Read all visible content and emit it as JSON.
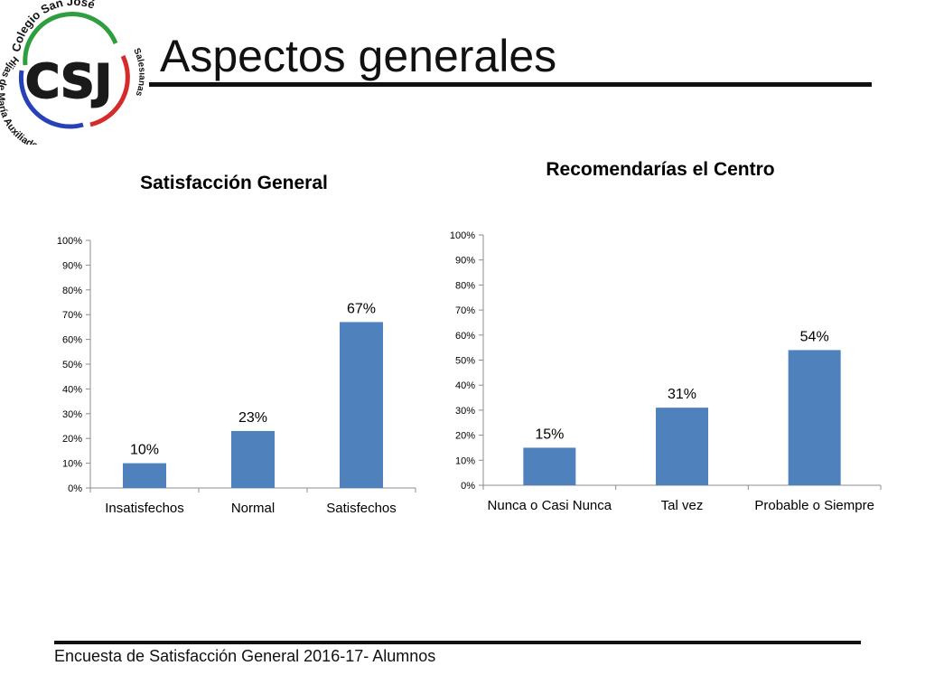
{
  "slide": {
    "title": "Aspectos generales",
    "footer": "Encuesta  de Satisfacción General 2016-17- Alumnos"
  },
  "logo": {
    "monogram": "CSJ",
    "ring_top": "Colegio San José",
    "ring_left": "Hijas de María Auxiliadora",
    "ring_right": "Salesianas",
    "colors": {
      "monogram": "#1a1a1a",
      "arc_green": "#2e9e3e",
      "arc_red": "#d62b2b",
      "arc_blue": "#2741b8"
    }
  },
  "chart_data": [
    {
      "type": "bar",
      "title": "Satisfacción General",
      "categories": [
        "Insatisfechos",
        "Normal",
        "Satisfechos"
      ],
      "values": [
        10,
        23,
        67
      ],
      "data_labels": [
        "10%",
        "23%",
        "67%"
      ],
      "ylim": [
        0,
        100
      ],
      "y_ticks": [
        "0%",
        "10%",
        "20%",
        "30%",
        "40%",
        "50%",
        "60%",
        "70%",
        "80%",
        "90%",
        "100%"
      ],
      "grid": false,
      "legend": "none",
      "bar_color": "#4f81bd"
    },
    {
      "type": "bar",
      "title": "Recomendarías el Centro",
      "categories": [
        "Nunca o Casi Nunca",
        "Tal vez",
        "Probable o Siempre"
      ],
      "values": [
        15,
        31,
        54
      ],
      "data_labels": [
        "15%",
        "31%",
        "54%"
      ],
      "ylim": [
        0,
        100
      ],
      "y_ticks": [
        "0%",
        "10%",
        "20%",
        "30%",
        "40%",
        "50%",
        "60%",
        "70%",
        "80%",
        "90%",
        "100%"
      ],
      "grid": false,
      "legend": "none",
      "bar_color": "#4f81bd"
    }
  ]
}
